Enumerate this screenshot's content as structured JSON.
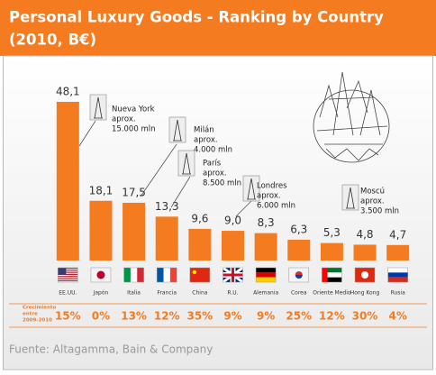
{
  "chart_data": {
    "type": "bar",
    "title": [
      "Personal Luxury Goods - Ranking by Country",
      "(2010, B€)"
    ],
    "categories": [
      "EE.UU.",
      "Japón",
      "Italia",
      "Francia",
      "China",
      "R.U.",
      "Alemania",
      "Corea",
      "Oriente Medio",
      "Hong Kong",
      "Rusia"
    ],
    "values": [
      48.1,
      18.1,
      17.5,
      13.3,
      9.6,
      9.0,
      8.3,
      6.3,
      5.3,
      4.8,
      4.7
    ],
    "value_labels": [
      "48,1",
      "18,1",
      "17,5",
      "13,3",
      "9,6",
      "9,0",
      "8,3",
      "6,3",
      "5,3",
      "4,8",
      "4,7"
    ],
    "color": "#f47b20",
    "ylim": [
      0,
      50
    ],
    "growth": {
      "label": [
        "Crecimiento",
        "entre",
        "2009-2010"
      ],
      "values": [
        "15%",
        "0%",
        "13%",
        "12%",
        "35%",
        "9%",
        "9%",
        "25%",
        "12%",
        "30%",
        "4%"
      ]
    },
    "annotations": [
      {
        "lines": [
          "Nueva York",
          "aprox.",
          "15.000 mln"
        ]
      },
      {
        "lines": [
          "Milán",
          "aprox.",
          "4.000 mln"
        ]
      },
      {
        "lines": [
          "París",
          "aprox.",
          "8.500 mln"
        ]
      },
      {
        "lines": [
          "Londres",
          "aprox.",
          "6.000 mln"
        ]
      },
      {
        "lines": [
          "Moscú",
          "aprox.",
          "3.500 mln"
        ]
      }
    ],
    "source": "Fuente: Altagamma, Bain & Company"
  }
}
